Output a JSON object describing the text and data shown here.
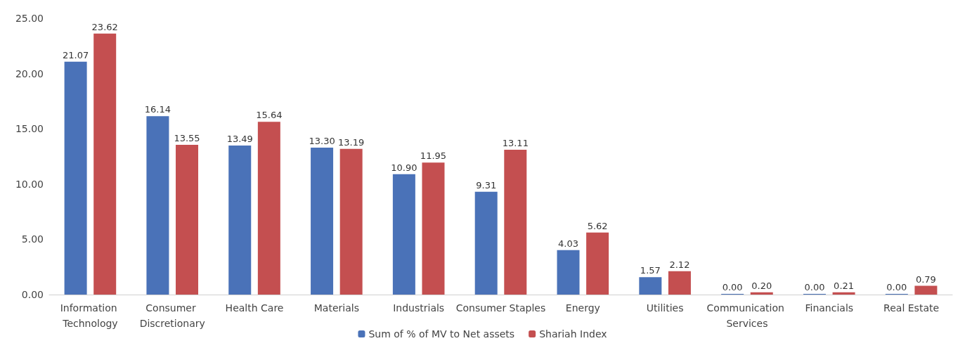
{
  "chart_data": {
    "type": "bar",
    "categories": [
      "Information Technology",
      "Consumer Discretionary",
      "Health Care",
      "Materials",
      "Industrials",
      "Consumer Staples",
      "Energy",
      "Utilities",
      "Communication Services",
      "Financials",
      "Real Estate"
    ],
    "series": [
      {
        "name": "Sum of % of MV to Net assets",
        "color": "#4a72b8",
        "values": [
          21.07,
          16.14,
          13.49,
          13.3,
          10.9,
          9.31,
          4.03,
          1.57,
          0,
          0,
          0
        ],
        "value_labels": [
          "21.07",
          "16.14",
          "13.49",
          "13.30",
          "10.90",
          "9.31",
          "4.03",
          "1.57",
          "0.00",
          "0.00",
          "0.00"
        ]
      },
      {
        "name": "Shariah Index",
        "color": "#c44f50",
        "values": [
          23.62,
          13.55,
          15.64,
          13.19,
          11.95,
          13.11,
          5.62,
          2.12,
          0.2,
          0.21,
          0.79
        ],
        "value_labels": [
          "23.62",
          "13.55",
          "15.64",
          "13.19",
          "11.95",
          "13.11",
          "5.62",
          "2.12",
          "0.20",
          "0.21",
          "0.79"
        ]
      }
    ],
    "ylim": [
      0,
      25
    ],
    "yticks": [
      {
        "value": 0,
        "label": "0.00"
      },
      {
        "value": 5,
        "label": "5.00"
      },
      {
        "value": 10,
        "label": "10.00"
      },
      {
        "value": 15,
        "label": "15.00"
      },
      {
        "value": 20,
        "label": "20.00"
      },
      {
        "value": 25,
        "label": "25.00"
      }
    ],
    "grid": false,
    "legend": "bottom"
  }
}
